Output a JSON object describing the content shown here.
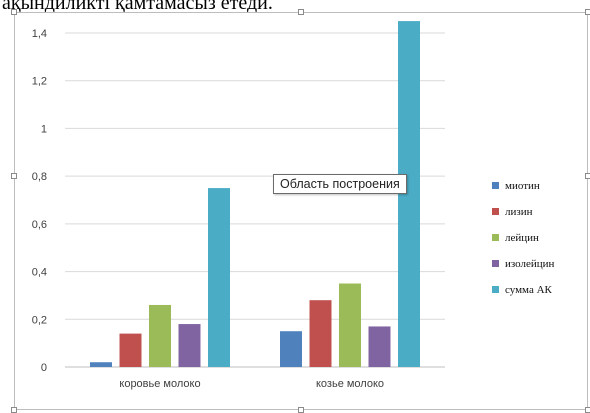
{
  "top_text": "ақындиликтi қамтамасыз етеди.",
  "tooltip": "Область построения",
  "colors": {
    "frame": "#bdbdbd",
    "grid": "#d9d9d9",
    "axis_text": "#404040"
  },
  "chart_data": {
    "type": "bar",
    "categories": [
      "коровье молоко",
      "козье молоко"
    ],
    "series": [
      {
        "name": "миотин",
        "color": "#4f81bd",
        "values": [
          0.02,
          0.15
        ]
      },
      {
        "name": "лизин",
        "color": "#c0504d",
        "values": [
          0.14,
          0.28
        ]
      },
      {
        "name": "лейцин",
        "color": "#9bbb59",
        "values": [
          0.26,
          0.35
        ]
      },
      {
        "name": "изолейцин",
        "color": "#8064a2",
        "values": [
          0.18,
          0.17
        ]
      },
      {
        "name": "сумма АК",
        "color": "#4bacc6",
        "values": [
          0.75,
          1.45
        ]
      }
    ],
    "ylim": [
      0,
      1.4
    ],
    "yticks": [
      "0",
      "0,2",
      "0,4",
      "0,6",
      "0,8",
      "1",
      "1,2",
      "1,4"
    ],
    "legend_position": "right",
    "grid": true
  }
}
